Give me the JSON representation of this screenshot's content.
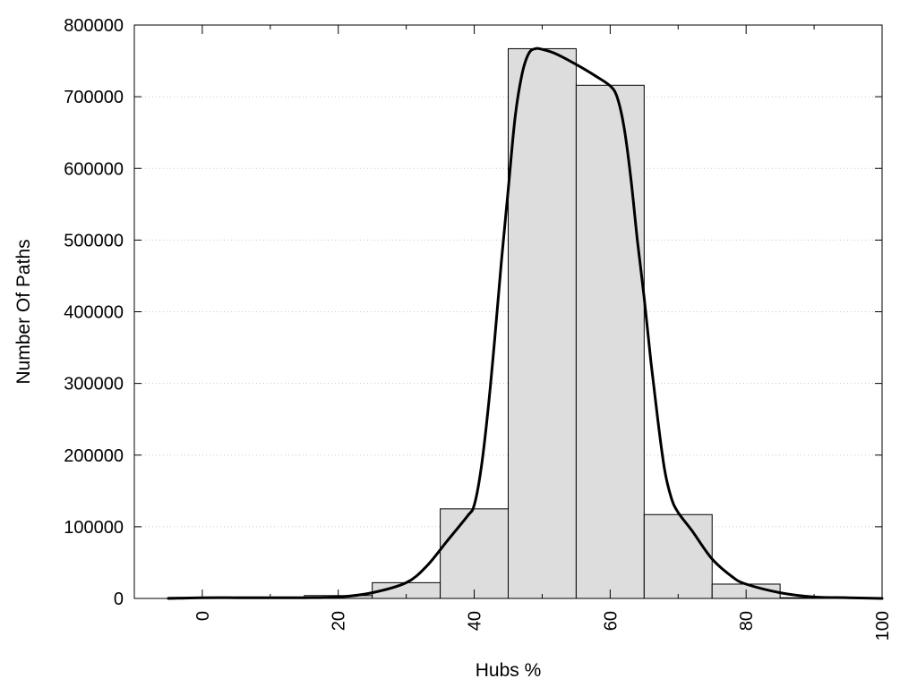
{
  "chart_data": {
    "type": "bar",
    "xlabel": "Hubs %",
    "ylabel": "Number Of Paths",
    "xlim": [
      -10,
      100
    ],
    "ylim": [
      0,
      800000
    ],
    "x_ticks": [
      0,
      20,
      40,
      60,
      80,
      100
    ],
    "y_ticks": [
      0,
      100000,
      200000,
      300000,
      400000,
      500000,
      600000,
      700000,
      800000
    ],
    "x_tick_labels": [
      "0",
      "20",
      "40",
      "60",
      "80",
      "100"
    ],
    "y_tick_labels": [
      "0",
      "100000",
      "200000",
      "300000",
      "400000",
      "500000",
      "600000",
      "700000",
      "800000"
    ],
    "grid": "horizontal-dotted",
    "bin_width": 10,
    "bars": {
      "x": [
        0,
        10,
        20,
        30,
        40,
        50,
        60,
        70,
        80,
        90
      ],
      "values": [
        1500,
        2000,
        4000,
        22000,
        125000,
        767000,
        716000,
        117000,
        20000,
        1000
      ]
    },
    "curve": {
      "x": [
        -5,
        0,
        5,
        10,
        15,
        20,
        25,
        30,
        33,
        36,
        39,
        40,
        41,
        42,
        43,
        44,
        45,
        46,
        47,
        48,
        49,
        50,
        52,
        55,
        58,
        60,
        61,
        62,
        63,
        64,
        65,
        66,
        67,
        68,
        69,
        70,
        72,
        75,
        78,
        80,
        85,
        90,
        95,
        100
      ],
      "y": [
        0,
        1000,
        1000,
        1000,
        1000,
        2000,
        8000,
        22000,
        45000,
        80000,
        115000,
        130000,
        180000,
        260000,
        360000,
        470000,
        570000,
        670000,
        730000,
        760000,
        767000,
        766000,
        760000,
        745000,
        728000,
        715000,
        700000,
        660000,
        590000,
        500000,
        420000,
        330000,
        250000,
        180000,
        140000,
        120000,
        95000,
        55000,
        30000,
        20000,
        8000,
        2000,
        1000,
        0
      ]
    }
  }
}
